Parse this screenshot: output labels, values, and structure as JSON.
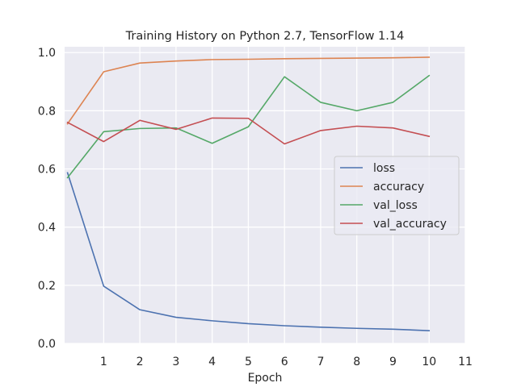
{
  "chart_data": {
    "type": "line",
    "title": "Training History on Python 2.7, TensorFlow 1.14",
    "xlabel": "Epoch",
    "ylabel": "",
    "xlim": [
      -0.08,
      11.0
    ],
    "ylim": [
      0.0,
      1.02
    ],
    "xticks": [
      1,
      2,
      3,
      4,
      5,
      6,
      7,
      8,
      9,
      10,
      11
    ],
    "yticks": [
      0.0,
      0.2,
      0.4,
      0.6,
      0.8,
      1.0
    ],
    "ytick_labels": [
      "0.0",
      "0.2",
      "0.4",
      "0.6",
      "0.8",
      "1.0"
    ],
    "grid": true,
    "legend_position": "center-right",
    "x": [
      0,
      1,
      2,
      3,
      4,
      5,
      6,
      7,
      8,
      9,
      10
    ],
    "series": [
      {
        "name": "loss",
        "color": "#4c72b0",
        "values": [
          0.587,
          0.197,
          0.116,
          0.09,
          0.078,
          0.068,
          0.061,
          0.056,
          0.052,
          0.049,
          0.044
        ]
      },
      {
        "name": "accuracy",
        "color": "#dd8452",
        "values": [
          0.755,
          0.934,
          0.964,
          0.971,
          0.976,
          0.977,
          0.979,
          0.98,
          0.981,
          0.982,
          0.984
        ]
      },
      {
        "name": "val_loss",
        "color": "#55a868",
        "values": [
          0.57,
          0.728,
          0.739,
          0.741,
          0.688,
          0.745,
          0.917,
          0.829,
          0.8,
          0.829,
          0.921
        ]
      },
      {
        "name": "val_accuracy",
        "color": "#c44e52",
        "values": [
          0.76,
          0.694,
          0.767,
          0.736,
          0.775,
          0.774,
          0.686,
          0.732,
          0.747,
          0.741,
          0.712
        ]
      }
    ],
    "plot_background": "#eaeaf2"
  }
}
